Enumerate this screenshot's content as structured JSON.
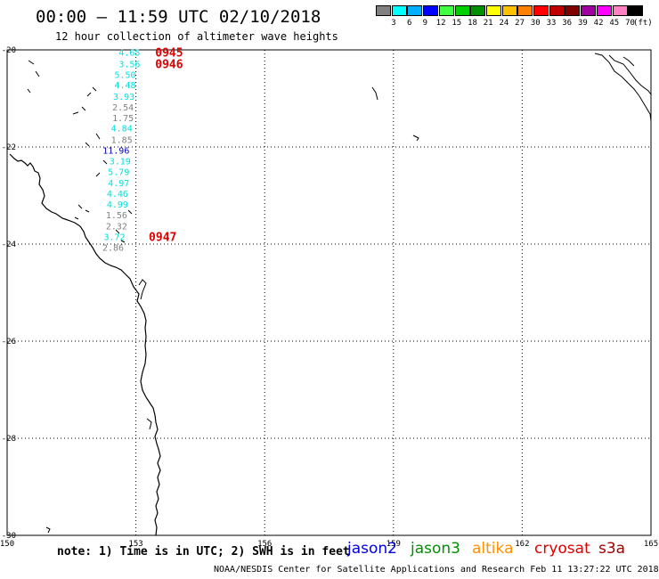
{
  "header": {
    "title": "00:00 – 11:59 UTC 02/10/2018",
    "subtitle": "12 hour collection of altimeter wave heights"
  },
  "legend": {
    "unit": "(ft)",
    "bins": [
      {
        "label": "3",
        "color": "#808080"
      },
      {
        "label": "6",
        "color": "#00ffff"
      },
      {
        "label": "9",
        "color": "#00b0ff"
      },
      {
        "label": "12",
        "color": "#0000ff"
      },
      {
        "label": "15",
        "color": "#40ff40"
      },
      {
        "label": "18",
        "color": "#00d000"
      },
      {
        "label": "21",
        "color": "#009000"
      },
      {
        "label": "24",
        "color": "#ffff00"
      },
      {
        "label": "27",
        "color": "#ffc000"
      },
      {
        "label": "30",
        "color": "#ff8000"
      },
      {
        "label": "33",
        "color": "#ff0000"
      },
      {
        "label": "36",
        "color": "#c00000"
      },
      {
        "label": "39",
        "color": "#800000"
      },
      {
        "label": "42",
        "color": "#a000a0"
      },
      {
        "label": "45",
        "color": "#ff00ff"
      },
      {
        "label": "70",
        "color": "#ff80c0"
      },
      {
        "label": "",
        "color": "#000000"
      }
    ]
  },
  "map": {
    "lon_range": [
      150,
      165
    ],
    "lat_range": [
      -30,
      -20
    ],
    "lon_ticks": [
      "150",
      "153",
      "156",
      "159",
      "162",
      "165"
    ],
    "lat_ticks": [
      "-20",
      "-22",
      "-24",
      "-26",
      "-28",
      "-30"
    ]
  },
  "observations": [
    {
      "value": "4.65",
      "lat": -20.05,
      "lon": 153.1,
      "color": "#00e0e0"
    },
    {
      "value": "3.56",
      "lat": -20.28,
      "lon": 153.1,
      "color": "#00e0e0"
    },
    {
      "value": "5.50",
      "lat": -20.5,
      "lon": 153.0,
      "color": "#00e0e0"
    },
    {
      "value": "4.48",
      "lat": -20.72,
      "lon": 153.0,
      "color": "#00e0e0"
    },
    {
      "value": "3.93",
      "lat": -20.95,
      "lon": 152.97,
      "color": "#00e0e0"
    },
    {
      "value": "2.54",
      "lat": -21.17,
      "lon": 152.95,
      "color": "#808080"
    },
    {
      "value": "1.75",
      "lat": -21.39,
      "lon": 152.95,
      "color": "#808080"
    },
    {
      "value": "4.84",
      "lat": -21.61,
      "lon": 152.92,
      "color": "#00e0e0"
    },
    {
      "value": "1.85",
      "lat": -21.84,
      "lon": 152.92,
      "color": "#808080"
    },
    {
      "value": "11.96",
      "lat": -22.06,
      "lon": 152.85,
      "color": "#0000c0"
    },
    {
      "value": "3.19",
      "lat": -22.28,
      "lon": 152.88,
      "color": "#00e0e0"
    },
    {
      "value": "5.79",
      "lat": -22.5,
      "lon": 152.85,
      "color": "#00e0e0"
    },
    {
      "value": "4.97",
      "lat": -22.73,
      "lon": 152.85,
      "color": "#00e0e0"
    },
    {
      "value": "4.46",
      "lat": -22.95,
      "lon": 152.82,
      "color": "#00e0e0"
    },
    {
      "value": "4.99",
      "lat": -23.17,
      "lon": 152.82,
      "color": "#00e0e0"
    },
    {
      "value": "1.56",
      "lat": -23.39,
      "lon": 152.8,
      "color": "#808080"
    },
    {
      "value": "2.32",
      "lat": -23.62,
      "lon": 152.8,
      "color": "#808080"
    },
    {
      "value": "3.72",
      "lat": -23.84,
      "lon": 152.75,
      "color": "#00e0e0"
    },
    {
      "value": "2.86",
      "lat": -24.06,
      "lon": 152.72,
      "color": "#808080"
    }
  ],
  "passes": [
    {
      "time": "0945",
      "lat": -20.05,
      "lon": 153.45
    },
    {
      "time": "0946",
      "lat": -20.28,
      "lon": 153.45
    },
    {
      "time": "0947",
      "lat": -23.84,
      "lon": 153.3
    }
  ],
  "footer": {
    "note": "note: 1) Time is in UTC; 2) SWH is in feet",
    "satellites": [
      {
        "name": "jason2",
        "color": "#0000e0"
      },
      {
        "name": "jason3",
        "color": "#009000"
      },
      {
        "name": "altika",
        "color": "#ff9000"
      },
      {
        "name": "cryosat",
        "color": "#e00000"
      },
      {
        "name": "s3a",
        "color": "#a00000"
      }
    ],
    "credit": "NOAA/NESDIS Center for Satellite Applications and Research   Feb 11 13:27:22 UTC 2018"
  }
}
